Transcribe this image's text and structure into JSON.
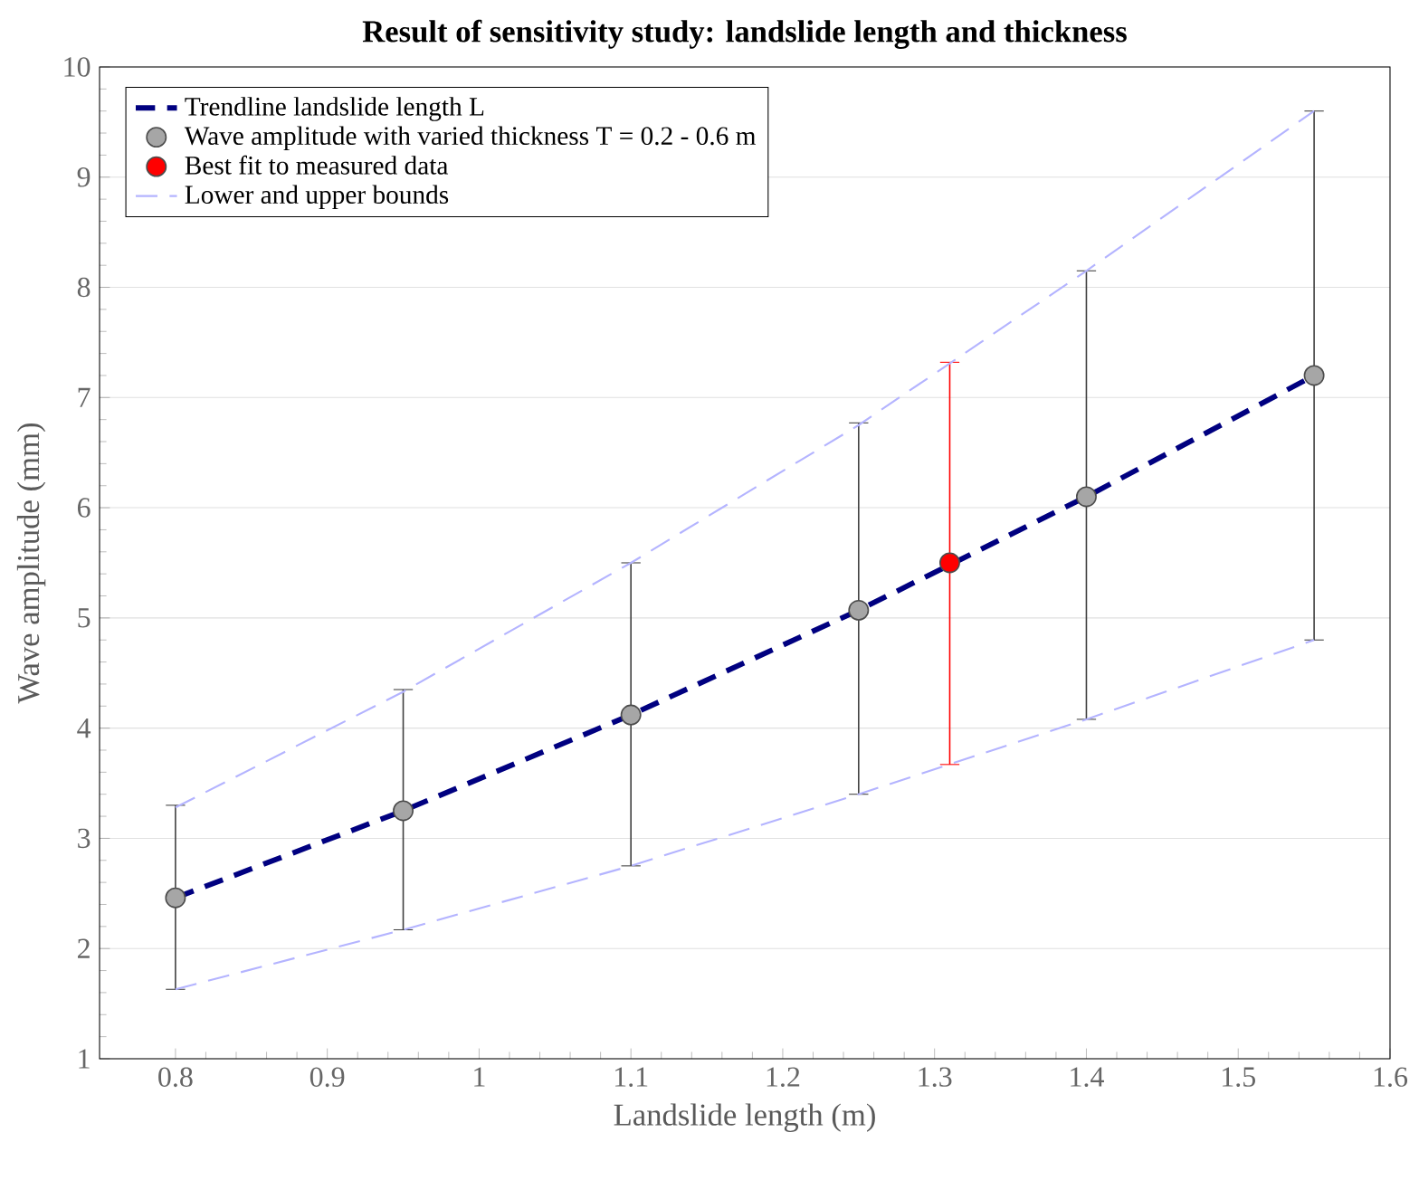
{
  "chart_data": {
    "type": "scatter",
    "title": "Result of sensitivity study: landslide length and thickness",
    "xlabel": "Landslide length (m)",
    "ylabel": "Wave amplitude (mm)",
    "xlim": [
      0.75,
      1.6
    ],
    "ylim": [
      1,
      10
    ],
    "xticks": [
      0.8,
      0.9,
      1,
      1.1,
      1.2,
      1.3,
      1.4,
      1.5,
      1.6
    ],
    "yticks": [
      1,
      2,
      3,
      4,
      5,
      6,
      7,
      8,
      9,
      10
    ],
    "grid": "y",
    "legend": "top left",
    "series": [
      {
        "name": "Trendline landslide length L",
        "type": "line",
        "line_style": "dashed",
        "marker": "none",
        "color": "#000080",
        "x": [
          0.8,
          0.95,
          1.1,
          1.25,
          1.4,
          1.55
        ],
        "values": [
          2.46,
          3.25,
          4.12,
          5.07,
          6.1,
          7.2
        ]
      },
      {
        "name": "Wave amplitude with varied thickness T = 0.2 - 0.6 m",
        "marker": "circle",
        "color": "#a6a6a6",
        "x": [
          0.8,
          0.95,
          1.1,
          1.25,
          1.4,
          1.55
        ],
        "values": [
          2.46,
          3.25,
          4.12,
          5.07,
          6.1,
          7.2
        ],
        "errors": [
          [
            1.63,
            3.3
          ],
          [
            2.17,
            4.35
          ],
          [
            2.75,
            5.5
          ],
          [
            3.4,
            6.77
          ],
          [
            4.08,
            8.15
          ],
          [
            4.8,
            9.6
          ]
        ]
      },
      {
        "name": "Best fit to measured data",
        "marker": "circle",
        "color": "#ff0000",
        "x": [
          1.31
        ],
        "values": [
          5.5
        ],
        "errors": [
          [
            3.67,
            7.32
          ]
        ]
      },
      {
        "name": "Lower and upper bounds",
        "type": "line",
        "line_style": "dashed",
        "marker": "none",
        "color": "#b4b4ff",
        "x": [
          0.8,
          0.95,
          1.1,
          1.25,
          1.4,
          1.55
        ],
        "values": [
          3.28,
          4.33,
          5.5,
          6.75,
          8.15,
          9.6
        ]
      },
      {
        "type": "line",
        "line_style": "dashed",
        "marker": "none",
        "color": "#b4b4ff",
        "x": [
          0.8,
          0.95,
          1.1,
          1.25,
          1.4,
          1.55
        ],
        "values": [
          1.63,
          2.17,
          2.75,
          3.4,
          4.08,
          4.8
        ]
      }
    ]
  }
}
